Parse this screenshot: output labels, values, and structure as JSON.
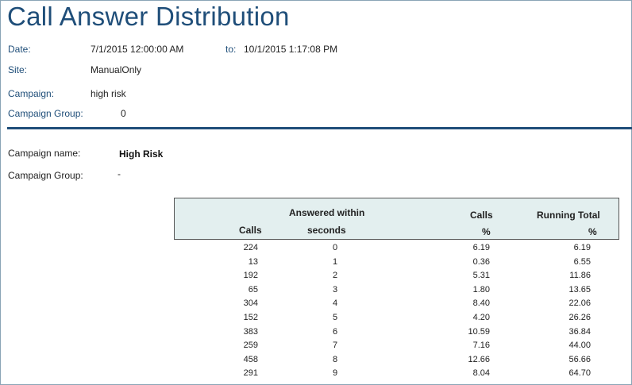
{
  "title": "Call Answer Distribution",
  "header": {
    "date_label": "Date:",
    "date_from": "7/1/2015 12:00:00 AM",
    "to_label": "to:",
    "date_to": "10/1/2015 1:17:08 PM",
    "site_label": "Site:",
    "site_value": "ManualOnly",
    "campaign_label": "Campaign:",
    "campaign_value": "high risk",
    "campaign_group_label": "Campaign Group:",
    "campaign_group_value": "0"
  },
  "section": {
    "campaign_name_label": "Campaign name:",
    "campaign_name_value": "High Risk",
    "campaign_group_label": "Campaign Group:",
    "campaign_group_value": "-"
  },
  "table": {
    "headers": {
      "calls": "Calls",
      "answered_line1": "Answered within",
      "answered_line2": "seconds",
      "calls_pct_line1": "Calls",
      "calls_pct_line2": "%",
      "running_line1": "Running Total",
      "running_line2": "%"
    },
    "rows": [
      {
        "calls": "224",
        "seconds": "0",
        "pct": "6.19",
        "running": "6.19"
      },
      {
        "calls": "13",
        "seconds": "1",
        "pct": "0.36",
        "running": "6.55"
      },
      {
        "calls": "192",
        "seconds": "2",
        "pct": "5.31",
        "running": "11.86"
      },
      {
        "calls": "65",
        "seconds": "3",
        "pct": "1.80",
        "running": "13.65"
      },
      {
        "calls": "304",
        "seconds": "4",
        "pct": "8.40",
        "running": "22.06"
      },
      {
        "calls": "152",
        "seconds": "5",
        "pct": "4.20",
        "running": "26.26"
      },
      {
        "calls": "383",
        "seconds": "6",
        "pct": "10.59",
        "running": "36.84"
      },
      {
        "calls": "259",
        "seconds": "7",
        "pct": "7.16",
        "running": "44.00"
      },
      {
        "calls": "458",
        "seconds": "8",
        "pct": "12.66",
        "running": "56.66"
      },
      {
        "calls": "291",
        "seconds": "9",
        "pct": "8.04",
        "running": "64.70"
      }
    ]
  }
}
